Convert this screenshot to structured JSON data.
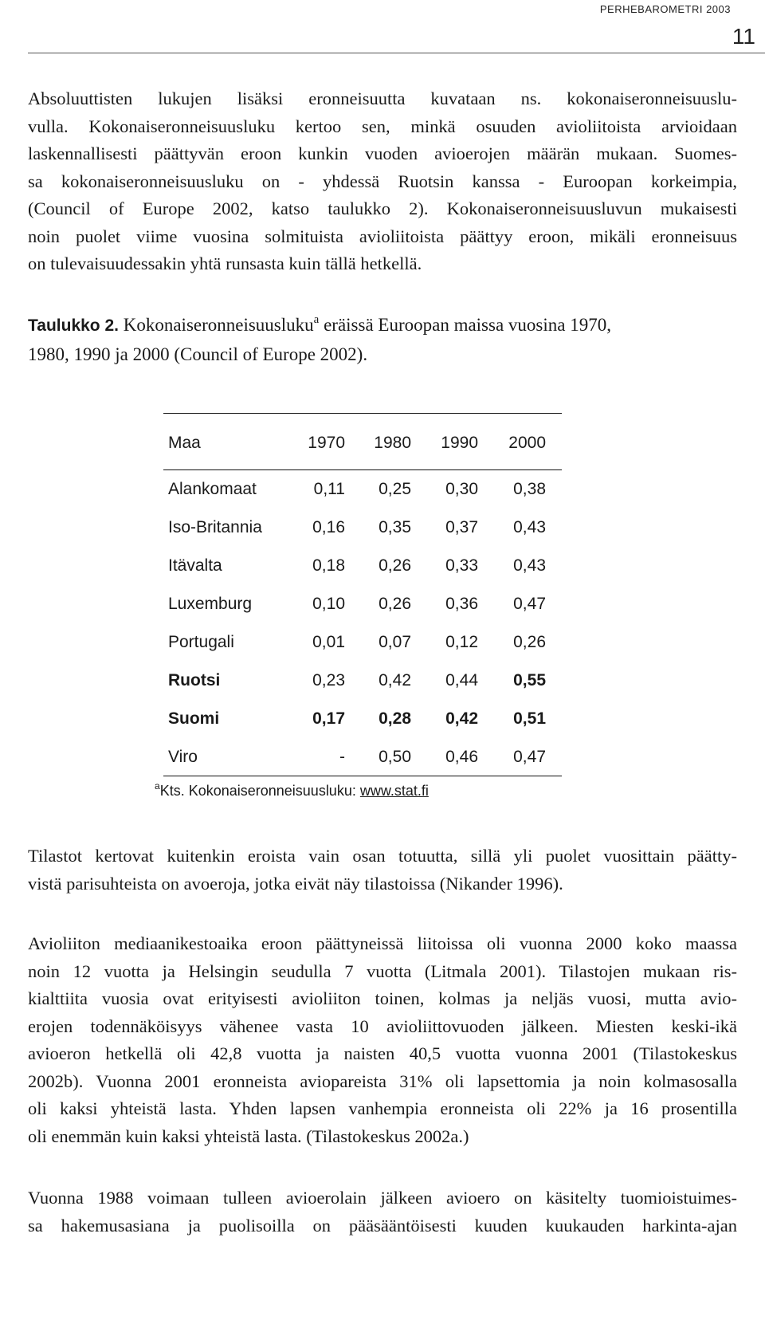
{
  "header": {
    "title": "PERHEBAROMETRI 2003",
    "page_number": "11"
  },
  "paragraph1": [
    "Absoluuttisten lukujen lisäksi eronneisuutta kuvataan ns. kokonaiseronneisuuslu-",
    "vulla. Kokonaiseronneisuusluku kertoo sen, minkä osuuden avioliitoista arvioidaan",
    "laskennallisesti päättyvän eroon kunkin vuoden avioerojen määrän mukaan. Suomes-",
    "sa kokonaiseronneisuusluku on - yhdessä Ruotsin kanssa - Euroopan korkeimpia,",
    "(Council of Europe 2002, katso taulukko 2). Kokonaiseronneisuusluvun mukaisesti",
    "noin puolet viime vuosina solmituista avioliitoista päättyy eroon, mikäli eronneisuus",
    "on tulevaisuudessakin yhtä runsasta kuin tällä hetkellä."
  ],
  "table_caption": {
    "label": "Taulukko 2.",
    "text_before_sup": "Kokonaiseronneisuusluku",
    "sup": "a",
    "text_after_sup": "eräissä Euroopan maissa vuosina 1970,",
    "line2": "1980, 1990 ja 2000 (Council of Europe 2002)."
  },
  "table": {
    "headers": [
      "Maa",
      "1970",
      "1980",
      "1990",
      "2000"
    ],
    "rows": [
      {
        "cells": [
          "Alankomaat",
          "0,11",
          "0,25",
          "0,30",
          "0,38"
        ],
        "bold": [
          false,
          false,
          false,
          false,
          false
        ]
      },
      {
        "cells": [
          "Iso-Britannia",
          "0,16",
          "0,35",
          "0,37",
          "0,43"
        ],
        "bold": [
          false,
          false,
          false,
          false,
          false
        ]
      },
      {
        "cells": [
          "Itävalta",
          "0,18",
          "0,26",
          "0,33",
          "0,43"
        ],
        "bold": [
          false,
          false,
          false,
          false,
          false
        ]
      },
      {
        "cells": [
          "Luxemburg",
          "0,10",
          "0,26",
          "0,36",
          "0,47"
        ],
        "bold": [
          false,
          false,
          false,
          false,
          false
        ]
      },
      {
        "cells": [
          "Portugali",
          "0,01",
          "0,07",
          "0,12",
          "0,26"
        ],
        "bold": [
          false,
          false,
          false,
          false,
          false
        ]
      },
      {
        "cells": [
          "Ruotsi",
          "0,23",
          "0,42",
          "0,44",
          "0,55"
        ],
        "bold": [
          true,
          false,
          false,
          false,
          true
        ]
      },
      {
        "cells": [
          "Suomi",
          "0,17",
          "0,28",
          "0,42",
          "0,51"
        ],
        "bold": [
          true,
          true,
          true,
          true,
          true
        ]
      },
      {
        "cells": [
          "Viro",
          "-",
          "0,50",
          "0,46",
          "0,47"
        ],
        "bold": [
          false,
          false,
          false,
          false,
          false
        ]
      }
    ],
    "footnote": {
      "sup": "a",
      "text": "Kts. Kokonaiseronneisuusluku: ",
      "link": "www.stat.fi"
    }
  },
  "paragraph2": [
    "Tilastot kertovat kuitenkin eroista vain osan totuutta, sillä yli puolet vuosittain päätty-",
    "vistä parisuhteista on avoeroja, jotka eivät näy tilastoissa (Nikander 1996)."
  ],
  "paragraph3": [
    "Avioliiton mediaanikestoaika eroon päättyneissä liitoissa oli vuonna 2000 koko maassa",
    "noin 12 vuotta ja Helsingin seudulla 7 vuotta (Litmala 2001). Tilastojen mukaan ris-",
    "kialttiita vuosia  ovat erityisesti avioliiton toinen, kolmas ja neljäs vuosi, mutta avio-",
    "erojen todennäköisyys vähenee vasta 10 avioliittovuoden jälkeen. Miesten keski-ikä",
    "avioeron hetkellä oli 42,8 vuotta ja naisten 40,5 vuotta vuonna 2001 (Tilastokeskus",
    "2002b). Vuonna 2001 eronneista aviopareista 31% oli lapsettomia ja noin kolmasosalla",
    "oli kaksi yhteistä lasta. Yhden lapsen vanhempia eronneista oli 22% ja 16 prosentilla",
    "oli enemmän kuin kaksi yhteistä lasta. (Tilastokeskus 2002a.)"
  ],
  "paragraph4": [
    "Vuonna 1988 voimaan tulleen avioerolain jälkeen avioero on käsitelty tuomioistuimes-",
    "sa hakemusasiana ja puolisoilla on pääsääntöisesti kuuden kuukauden harkinta-ajan"
  ]
}
